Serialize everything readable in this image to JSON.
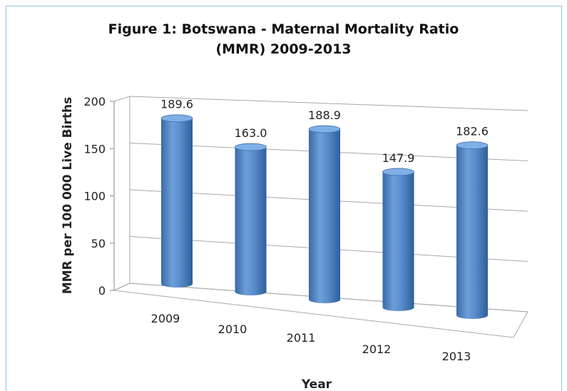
{
  "chart_data": {
    "type": "bar",
    "title_line1": "Figure 1: Botswana - Maternal Mortality Ratio",
    "title_line2": "(MMR) 2009-2013",
    "xlabel": "Year",
    "ylabel": "MMR per 100 000 Live Births",
    "categories": [
      "2009",
      "2010",
      "2011",
      "2012",
      "2013"
    ],
    "values": [
      189.6,
      163.0,
      188.9,
      147.9,
      182.6
    ],
    "value_labels": [
      "189.6",
      "163.0",
      "188.9",
      "147.9",
      "182.6"
    ],
    "yticks": [
      0,
      50,
      100,
      150,
      200
    ],
    "ylim": [
      0,
      200
    ],
    "grid": true,
    "bar_color": "#4f81bd",
    "style": "3d-cylinder"
  }
}
